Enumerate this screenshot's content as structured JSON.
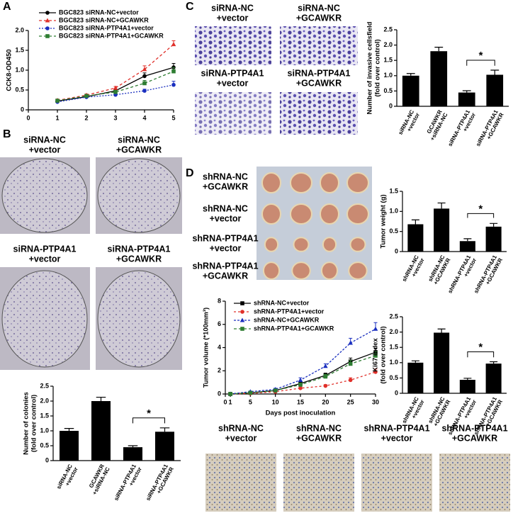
{
  "panel_letters": [
    "A",
    "B",
    "C",
    "D"
  ],
  "images": {
    "colony_plates": [
      [
        "siRNA-NC",
        "+vector"
      ],
      [
        "siRNA-NC",
        "+GCAWKR"
      ],
      [
        "siRNA-PTP4A1",
        "+vector"
      ],
      [
        "siRNA-PTP4A1",
        "+GCAWKR"
      ]
    ],
    "transwell": [
      [
        "siRNA-NC",
        "+vector"
      ],
      [
        "siRNA-NC",
        "+GCAWKR"
      ],
      [
        "siRNA-PTP4A1",
        "+vector"
      ],
      [
        "siRNA-PTP4A1",
        "+GCAWKR"
      ]
    ],
    "tumor_rows": [
      [
        "shRNA-NC",
        "+GCAWKR"
      ],
      [
        "shRNA-NC",
        "+vector"
      ],
      [
        "shRNA-PTP4A1",
        "+vector"
      ],
      [
        "shRNA-PTP4A1",
        "+GCAWKR"
      ]
    ],
    "ihc": [
      [
        "shRNA-NC",
        "+vector"
      ],
      [
        "shRNA-NC",
        "+GCAWKR"
      ],
      [
        "shRNA-PTP4A1",
        "+vector"
      ],
      [
        "shRNA-PTP4A1",
        "+GCAWKR"
      ]
    ]
  },
  "chart_data": [
    {
      "type": "line",
      "ylabel": "CCK8-OD450",
      "x": [
        1,
        2,
        3,
        4,
        5
      ],
      "xlim": [
        0,
        5
      ],
      "xticks": [
        0,
        1,
        2,
        3,
        4,
        5
      ],
      "ylim": [
        0,
        2
      ],
      "yticks": [
        0,
        0.5,
        {
          "value": 1,
          "label": "1.0"
        },
        1.5,
        {
          "value": 2,
          "label": "2.0"
        }
      ],
      "series": [
        {
          "name": "BGC823 siRNA-NC+vector",
          "color": "#000000",
          "marker": "circle",
          "dash": "none",
          "values": [
            0.22,
            0.33,
            0.48,
            0.85,
            1.07
          ],
          "errors": [
            0.03,
            0.03,
            0.04,
            0.08,
            0.1
          ]
        },
        {
          "name": "BGC823 siRNA-NC+GCAWKR",
          "color": "#e0302a",
          "marker": "triangle",
          "dash": "4,3",
          "values": [
            0.24,
            0.37,
            0.55,
            1.02,
            1.65
          ],
          "errors": [
            0.03,
            0.03,
            0.04,
            0.09,
            0.09
          ]
        },
        {
          "name": "BGC823 siRNA-PTP4A1+vector",
          "color": "#1a2fbf",
          "marker": "circle",
          "dash": "2,2",
          "values": [
            0.2,
            0.32,
            0.38,
            0.48,
            0.63
          ],
          "errors": [
            0.02,
            0.03,
            0.03,
            0.04,
            0.09
          ]
        },
        {
          "name": "BGC823 siRNA-PTP4A1+GCAWKR",
          "color": "#2e7d32",
          "marker": "square",
          "dash": "4,3",
          "values": [
            0.23,
            0.35,
            0.45,
            0.67,
            0.97
          ],
          "errors": [
            0.03,
            0.03,
            0.04,
            0.07,
            0.1
          ]
        }
      ]
    },
    {
      "type": "bar",
      "ylabel": [
        "Number of colonies",
        "(fold over control)"
      ],
      "color": "#000000",
      "categories": [
        [
          "siRNA-NC",
          "+vector"
        ],
        [
          "GCAWKR",
          "+siRNA-NC"
        ],
        [
          "siRNA-PTP4A1",
          "+vector"
        ],
        [
          "siRNA-PTP4A1",
          "+GCAWKR"
        ]
      ],
      "values": [
        1.0,
        2.0,
        0.45,
        0.97
      ],
      "errors": [
        0.08,
        0.13,
        0.05,
        0.13
      ],
      "ylim": [
        0,
        2.5
      ],
      "yticks": [
        0,
        0.5,
        {
          "value": 1,
          "label": "1.0"
        },
        1.5,
        {
          "value": 2,
          "label": "2.0"
        },
        2.5
      ],
      "annotation": "*"
    },
    {
      "type": "bar",
      "ylabel": [
        "Number of invasive cellsfield",
        "(fold over control)"
      ],
      "color": "#000000",
      "categories": [
        [
          "siRNA-NC",
          "+vector"
        ],
        [
          "GCAWKR",
          "+siRNA-NC"
        ],
        [
          "siRNA-PTP4A1",
          "+vector"
        ],
        [
          "siRNA-PTP4A1",
          "+GCAWKR"
        ]
      ],
      "values": [
        1.0,
        1.8,
        0.45,
        1.03
      ],
      "errors": [
        0.07,
        0.13,
        0.06,
        0.15
      ],
      "ylim": [
        0,
        2.5
      ],
      "yticks": [
        0,
        0.5,
        {
          "value": 1,
          "label": "1.0"
        },
        1.5,
        {
          "value": 2,
          "label": "2.0"
        },
        2.5
      ],
      "annotation": "*"
    },
    {
      "type": "bar",
      "ylabel": "Tumor weight (g)",
      "color": "#000000",
      "categories": [
        [
          "shRNA-NC",
          "+vector"
        ],
        [
          "shRNA-NC",
          "+GCAWKR"
        ],
        [
          "shRNA-PTP4A1",
          "+vector"
        ],
        [
          "shRNA-PTP4A1",
          "+GCAWKR"
        ]
      ],
      "values": [
        0.68,
        1.07,
        0.26,
        0.62
      ],
      "errors": [
        0.11,
        0.14,
        0.06,
        0.08
      ],
      "ylim": [
        0,
        1.5
      ],
      "yticks": [
        0,
        0.5,
        {
          "value": 1,
          "label": "1.0"
        },
        1.5
      ],
      "annotation": "*"
    },
    {
      "type": "line",
      "ylabel": "Tumor volume (*100mm³)",
      "xlabel": "Days post inoculation",
      "x": [
        1,
        5,
        10,
        15,
        20,
        25,
        30
      ],
      "xlim": [
        0,
        30
      ],
      "xticks": [
        0,
        1,
        5,
        10,
        15,
        20,
        25,
        30
      ],
      "ylim": [
        0,
        8
      ],
      "yticks": [
        0,
        2,
        4,
        6,
        8
      ],
      "series": [
        {
          "name": "shRNA-NC+vector",
          "color": "#000000",
          "marker": "square",
          "dash": "none",
          "values": [
            0,
            0.1,
            0.3,
            0.9,
            1.6,
            2.8,
            3.6
          ],
          "errors": [
            0,
            0.05,
            0.1,
            0.15,
            0.2,
            0.3,
            0.35
          ]
        },
        {
          "name": "shRNA-PTP4A1+vector",
          "color": "#e0302a",
          "marker": "circle",
          "dash": "3,3",
          "values": [
            0,
            0.05,
            0.2,
            0.5,
            0.7,
            1.2,
            1.9
          ],
          "errors": [
            0,
            0.03,
            0.05,
            0.1,
            0.1,
            0.2,
            0.25
          ]
        },
        {
          "name": "shRNA-NC+GCAWKR",
          "color": "#1a2fbf",
          "marker": "triangle",
          "dash": "3,2",
          "values": [
            0,
            0.2,
            0.4,
            1.2,
            2.4,
            4.4,
            5.6
          ],
          "errors": [
            0,
            0.05,
            0.1,
            0.2,
            0.2,
            0.4,
            0.55
          ]
        },
        {
          "name": "shRNA-PTP4A1+GCAWKR",
          "color": "#2e7d32",
          "marker": "square",
          "dash": "4,3",
          "values": [
            0,
            0.1,
            0.3,
            0.8,
            1.5,
            2.6,
            3.3
          ],
          "errors": [
            0,
            0.04,
            0.08,
            0.15,
            0.2,
            0.3,
            0.35
          ]
        }
      ]
    },
    {
      "type": "bar",
      "ylabel": [
        "Ki67 index",
        "(fold over control)"
      ],
      "color": "#000000",
      "categories": [
        [
          "shRNA-NC",
          "+vector"
        ],
        [
          "shRNA-NC",
          "+GCAWKR"
        ],
        [
          "shRNA-PTP4A1",
          "+vector"
        ],
        [
          "shRNA-PTP4A1",
          "+GCAWKR"
        ]
      ],
      "values": [
        1.0,
        1.98,
        0.44,
        0.97
      ],
      "errors": [
        0.06,
        0.12,
        0.05,
        0.06
      ],
      "ylim": [
        0,
        2.5
      ],
      "yticks": [
        0,
        0.5,
        {
          "value": 1,
          "label": "1.0"
        },
        1.5,
        {
          "value": 2,
          "label": "2.0"
        },
        2.5
      ],
      "annotation": "*"
    }
  ]
}
